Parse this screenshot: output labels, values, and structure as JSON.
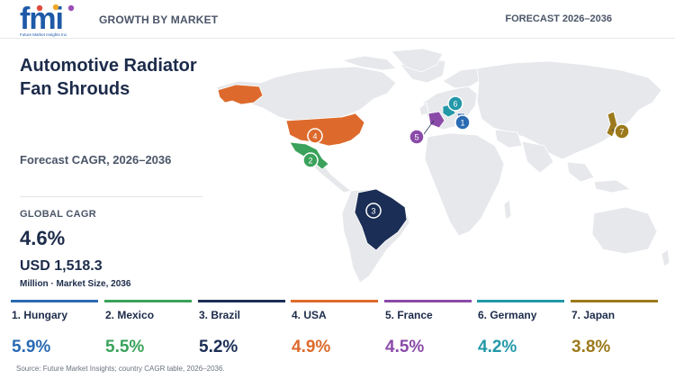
{
  "header": {
    "logo_text": "fmi",
    "logo_subtext": "Future Market Insights Inc.",
    "left_label": "GROWTH BY MARKET",
    "right_label": "FORECAST 2026–2036"
  },
  "summary": {
    "title": "Automotive Radiator Fan Shrouds",
    "cagr_period": "Forecast CAGR, 2026–2036",
    "global_label": "GLOBAL CAGR",
    "global_value": "4.6%",
    "market_value": "USD 1,518.3",
    "market_note": "Million · Market Size, 2036"
  },
  "countries": [
    {
      "rank": "1",
      "name": "1. Hungary",
      "cagr": "5.9%",
      "color": "#2a6bb3"
    },
    {
      "rank": "2",
      "name": "2. Mexico",
      "cagr": "5.5%",
      "color": "#3aa25a"
    },
    {
      "rank": "3",
      "name": "3. Brazil",
      "cagr": "5.2%",
      "color": "#1b2e55"
    },
    {
      "rank": "4",
      "name": "4. USA",
      "cagr": "4.9%",
      "color": "#dd6a2c"
    },
    {
      "rank": "5",
      "name": "5. France",
      "cagr": "4.5%",
      "color": "#8a4ba8"
    },
    {
      "rank": "6",
      "name": "6. Germany",
      "cagr": "4.2%",
      "color": "#2398a8"
    },
    {
      "rank": "7",
      "name": "7. Japan",
      "cagr": "3.8%",
      "color": "#9c7a1c"
    }
  ],
  "map": {
    "land_color": "#e6e8eb",
    "border_color": "#ffffff"
  },
  "source": "Source: Future Market Insights; country CAGR table, 2026–2036."
}
